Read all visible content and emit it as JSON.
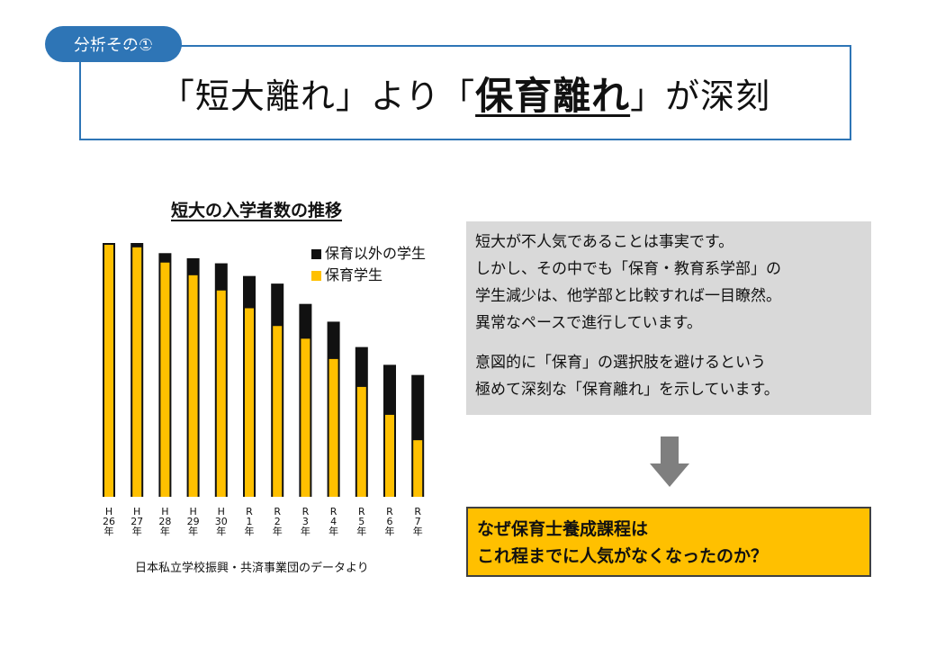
{
  "badge": {
    "label": "分析その①"
  },
  "headline": {
    "part1": "「短大離れ」より「",
    "strong": "保育離れ",
    "part2": "」が深刻"
  },
  "chart_data": {
    "type": "bar",
    "stacked": true,
    "title": "短大の入学者数の推移",
    "categories": [
      [
        "H",
        "26",
        "年"
      ],
      [
        "H",
        "27",
        "年"
      ],
      [
        "H",
        "28",
        "年"
      ],
      [
        "H",
        "29",
        "年"
      ],
      [
        "H",
        "30",
        "年"
      ],
      [
        "R",
        "1",
        "年"
      ],
      [
        "R",
        "2",
        "年"
      ],
      [
        "R",
        "3",
        "年"
      ],
      [
        "R",
        "4",
        "年"
      ],
      [
        "R",
        "5",
        "年"
      ],
      [
        "R",
        "6",
        "年"
      ],
      [
        "R",
        "7",
        "年"
      ]
    ],
    "series": [
      {
        "name": "保育学生",
        "color": "#ffc000",
        "values": [
          100,
          99,
          93,
          88,
          82,
          75,
          68,
          63,
          55,
          44,
          33,
          23
        ]
      },
      {
        "name": "保育以外の学生",
        "color": "#111111",
        "values": [
          0,
          1,
          3,
          6,
          10,
          12,
          16,
          13,
          14,
          15,
          19,
          25
        ]
      }
    ],
    "ylim": [
      0,
      100
    ],
    "xlabel": "",
    "ylabel": "",
    "legend": "top-right",
    "source": "日本私立学校振興・共済事業団のデータより"
  },
  "info": {
    "para1": [
      "短大が不人気であることは事実です。",
      "しかし、その中でも「保育・教育系学部」の",
      "学生減少は、他学部と比較すれば一目瞭然。",
      "異常なペースで進行しています。"
    ],
    "para2": [
      "意図的に「保育」の選択肢を避けるという",
      "極めて深刻な「保育離れ」を示しています。"
    ]
  },
  "callout": {
    "line1": "なぜ保育士養成課程は",
    "line2": "これ程までに人気がなくなったのか？"
  },
  "colors": {
    "accent": "#2e75b6",
    "highlight": "#ffc000",
    "panel": "#d9d9d9",
    "arrow": "#7f7f7f"
  }
}
